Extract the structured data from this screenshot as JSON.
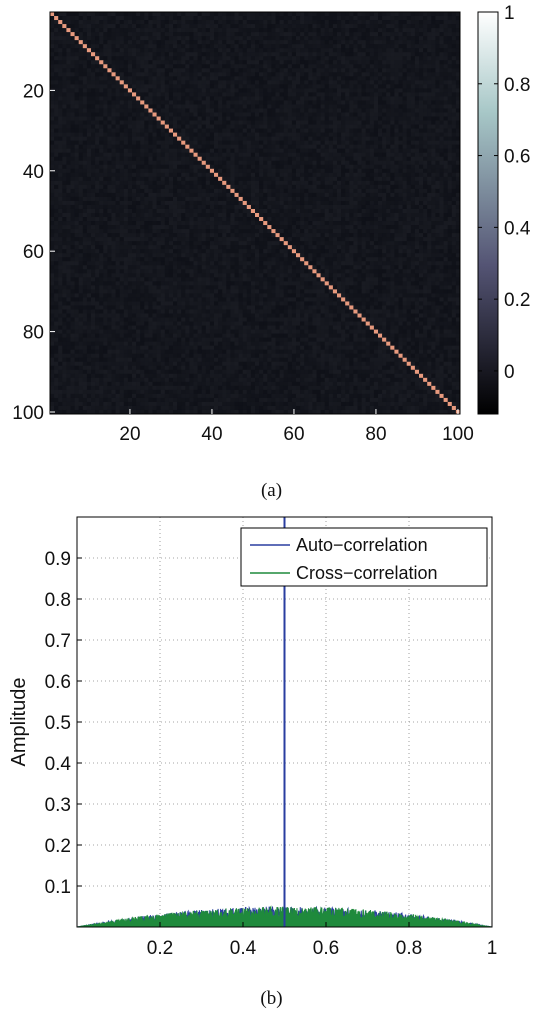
{
  "chart_data": [
    {
      "type": "heatmap",
      "caption": "(a)",
      "matrix_size": 100,
      "description_values": {
        "diagonal": 1.0,
        "off_diagonal_mean": 0.0,
        "off_diagonal_spread": 0.03
      },
      "xlim": [
        1,
        100
      ],
      "ylim": [
        1,
        100
      ],
      "x_ticks": [
        20,
        40,
        60,
        80,
        100
      ],
      "y_ticks": [
        20,
        40,
        60,
        80,
        100
      ],
      "colorbar": {
        "range": [
          -0.12,
          1.0
        ],
        "ticks": [
          0,
          0.2,
          0.4,
          0.6,
          0.8,
          1
        ],
        "tick_labels": [
          "0",
          "0.2",
          "0.4",
          "0.6",
          "0.8",
          "1"
        ],
        "colormap": "bone"
      }
    },
    {
      "type": "line",
      "caption": "(b)",
      "xlabel": "",
      "ylabel": "Amplitude",
      "xlim": [
        0,
        1
      ],
      "ylim": [
        0,
        1
      ],
      "grid": true,
      "x_ticks": [
        0.2,
        0.4,
        0.6,
        0.8,
        1
      ],
      "x_tick_labels": [
        "0.2",
        "0.4",
        "0.6",
        "0.8",
        "1"
      ],
      "y_ticks": [
        0.1,
        0.2,
        0.3,
        0.4,
        0.5,
        0.6,
        0.7,
        0.8,
        0.9
      ],
      "y_tick_labels": [
        "0.1",
        "0.2",
        "0.3",
        "0.4",
        "0.5",
        "0.6",
        "0.7",
        "0.8",
        "0.9"
      ],
      "legend_position": "top-right",
      "series": [
        {
          "name": "Auto−correlation",
          "color": "#2a3ea0",
          "peak_x": 0.5,
          "peak_y": 1.0,
          "baseline_max": 0.05,
          "samples": 1000
        },
        {
          "name": "Cross−correlation",
          "color": "#1f8a3c",
          "baseline_max": 0.05,
          "samples": 1000
        }
      ]
    }
  ]
}
